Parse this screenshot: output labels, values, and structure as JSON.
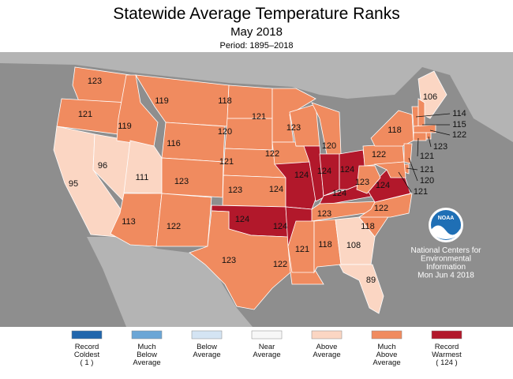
{
  "header": {
    "title": "Statewide Average Temperature Ranks",
    "subtitle": "May 2018",
    "period": "Period: 1895–2018"
  },
  "regions": [
    {
      "rank": 123,
      "color": "#f08b5f"
    },
    {
      "rank": 121,
      "color": "#f08b5f"
    },
    {
      "rank": 95,
      "color": "#fbd6c3"
    },
    {
      "rank": 96,
      "color": "#fbd6c3"
    },
    {
      "rank": 119,
      "color": "#f08b5f"
    },
    {
      "rank": 119,
      "color": "#f08b5f"
    },
    {
      "rank": 116,
      "color": "#f08b5f"
    },
    {
      "rank": 111,
      "color": "#fbd6c3"
    },
    {
      "rank": 123,
      "color": "#f08b5f"
    },
    {
      "rank": 113,
      "color": "#f08b5f"
    },
    {
      "rank": 122,
      "color": "#f08b5f"
    },
    {
      "rank": 118,
      "color": "#f08b5f"
    },
    {
      "rank": 120,
      "color": "#f08b5f"
    },
    {
      "rank": 121,
      "color": "#f08b5f"
    },
    {
      "rank": 123,
      "color": "#f08b5f"
    },
    {
      "rank": 124,
      "color": "#b2182b"
    },
    {
      "rank": 123,
      "color": "#f08b5f"
    },
    {
      "rank": 121,
      "color": "#f08b5f"
    },
    {
      "rank": 122,
      "color": "#f08b5f"
    },
    {
      "rank": 124,
      "color": "#b2182b"
    },
    {
      "rank": 124,
      "color": "#b2182b"
    },
    {
      "rank": 122,
      "color": "#f08b5f"
    },
    {
      "rank": 123,
      "color": "#f08b5f"
    },
    {
      "rank": 124,
      "color": "#b2182b"
    },
    {
      "rank": 120,
      "color": "#f08b5f"
    },
    {
      "rank": 124,
      "color": "#b2182b"
    },
    {
      "rank": 124,
      "color": "#b2182b"
    },
    {
      "rank": 124,
      "color": "#b2182b"
    },
    {
      "rank": 123,
      "color": "#f08b5f"
    },
    {
      "rank": 121,
      "color": "#f08b5f"
    },
    {
      "rank": 118,
      "color": "#f08b5f"
    },
    {
      "rank": 108,
      "color": "#fbd6c3"
    },
    {
      "rank": 89,
      "color": "#fbd6c3"
    },
    {
      "rank": 118,
      "color": "#f08b5f"
    },
    {
      "rank": 122,
      "color": "#f08b5f"
    },
    {
      "rank": 124,
      "color": "#b2182b"
    },
    {
      "rank": 123,
      "color": "#f08b5f"
    },
    {
      "rank": 122,
      "color": "#f08b5f"
    },
    {
      "rank": 118,
      "color": "#f08b5f"
    },
    {
      "rank": 106,
      "color": "#fbd6c3"
    },
    {
      "rank": 114,
      "color": "#f08b5f"
    },
    {
      "rank": 115,
      "color": "#f08b5f"
    },
    {
      "rank": 122,
      "color": "#f08b5f"
    },
    {
      "rank": 123,
      "color": "#f08b5f"
    },
    {
      "rank": 121,
      "color": "#f08b5f"
    },
    {
      "rank": 121,
      "color": "#f08b5f"
    },
    {
      "rank": 120,
      "color": "#f08b5f"
    },
    {
      "rank": 121,
      "color": "#f08b5f"
    }
  ],
  "legend": [
    {
      "color": "#2166ac",
      "label": [
        "Record",
        "Coldest",
        "( 1 )"
      ]
    },
    {
      "color": "#6ba6d6",
      "label": [
        "Much",
        "Below",
        "Average"
      ]
    },
    {
      "color": "#d4e4f3",
      "label": [
        "Below",
        "Average"
      ]
    },
    {
      "color": "#f7f7f7",
      "label": [
        "Near",
        "Average"
      ]
    },
    {
      "color": "#fbd6c3",
      "label": [
        "Above",
        "Average"
      ]
    },
    {
      "color": "#f08b5f",
      "label": [
        "Much",
        "Above",
        "Average"
      ]
    },
    {
      "color": "#b2182b",
      "label": [
        "Record",
        "Warmest",
        "( 124 )"
      ]
    }
  ],
  "logo": "NOAA",
  "credit": [
    "National Centers for",
    "Environmental",
    "Information",
    "Mon Jun  4 2018"
  ]
}
